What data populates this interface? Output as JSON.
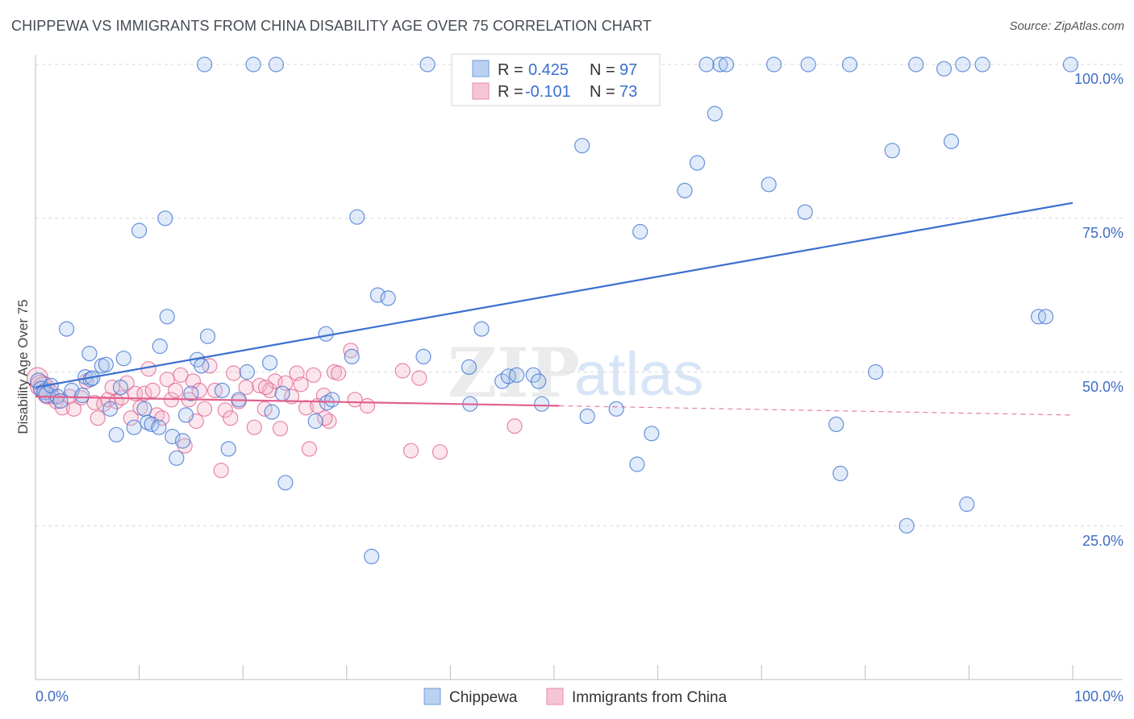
{
  "title": "CHIPPEWA VS IMMIGRANTS FROM CHINA DISABILITY AGE OVER 75 CORRELATION CHART",
  "source": "Source: ZipAtlas.com",
  "watermark": {
    "zip": "ZIP",
    "atlas": "atlas"
  },
  "colors": {
    "blue": "#3a6fd0",
    "blue_fill": "#a9c6ee",
    "pink": "#e0608e",
    "pink_fill": "#f4b7cb",
    "tick": "#3f6cc2",
    "grid": "#d8d8d8"
  },
  "legend": {
    "r_label": "R =",
    "n_label": "N =",
    "rows": [
      {
        "r": "0.425",
        "n": "97"
      },
      {
        "r": "-0.101",
        "n": "73"
      }
    ]
  },
  "chart_data": {
    "type": "scatter",
    "title": "CHIPPEWA VS IMMIGRANTS FROM CHINA DISABILITY AGE OVER 75 CORRELATION CHART",
    "xlabel": "",
    "ylabel": "Disability Age Over 75",
    "xlim": [
      0,
      100
    ],
    "ylim": [
      0,
      100
    ],
    "x_tick_labels": [
      "0.0%",
      "100.0%"
    ],
    "y_tick_labels": [
      "25.0%",
      "50.0%",
      "75.0%",
      "100.0%"
    ],
    "y_ticks": [
      25,
      50,
      75,
      100
    ],
    "grid": true,
    "legend_position": "top-center",
    "series": [
      {
        "name": "Chippewa",
        "color": "#3a6fd0",
        "trend": {
          "x": [
            0,
            100
          ],
          "y": [
            47.5,
            77.5
          ],
          "style": "solid"
        },
        "points": [
          [
            0.3,
            48.5
          ],
          [
            0.6,
            47.2
          ],
          [
            0.9,
            46.8
          ],
          [
            1.1,
            46.3
          ],
          [
            1.5,
            47.8
          ],
          [
            2.1,
            46.0
          ],
          [
            2.4,
            45.3
          ],
          [
            3.0,
            57.0
          ],
          [
            3.5,
            47.0
          ],
          [
            4.5,
            46.2
          ],
          [
            4.8,
            49.2
          ],
          [
            5.3,
            48.8
          ],
          [
            5.5,
            49.0
          ],
          [
            5.2,
            53.0
          ],
          [
            6.4,
            51.0
          ],
          [
            6.8,
            51.2
          ],
          [
            7.2,
            44.0
          ],
          [
            7.8,
            39.8
          ],
          [
            8.2,
            47.5
          ],
          [
            8.5,
            52.2
          ],
          [
            9.5,
            41.0
          ],
          [
            10.0,
            73.0
          ],
          [
            10.5,
            44.0
          ],
          [
            10.8,
            41.8
          ],
          [
            11.2,
            41.5
          ],
          [
            11.9,
            41.0
          ],
          [
            12.0,
            54.2
          ],
          [
            12.5,
            75.0
          ],
          [
            12.7,
            59.0
          ],
          [
            13.2,
            39.5
          ],
          [
            13.6,
            36.0
          ],
          [
            14.2,
            38.8
          ],
          [
            14.5,
            43.0
          ],
          [
            15.0,
            46.5
          ],
          [
            15.6,
            52.0
          ],
          [
            16.0,
            51.0
          ],
          [
            16.6,
            55.8
          ],
          [
            16.3,
            100
          ],
          [
            18.0,
            47.0
          ],
          [
            18.6,
            37.5
          ],
          [
            19.6,
            45.5
          ],
          [
            20.4,
            50.0
          ],
          [
            21.0,
            100
          ],
          [
            22.6,
            51.5
          ],
          [
            22.8,
            43.5
          ],
          [
            23.2,
            100
          ],
          [
            23.8,
            46.5
          ],
          [
            24.1,
            32.0
          ],
          [
            27.0,
            42.0
          ],
          [
            28.0,
            56.2
          ],
          [
            28.1,
            45.0
          ],
          [
            28.6,
            45.5
          ],
          [
            30.5,
            52.5
          ],
          [
            31.0,
            75.2
          ],
          [
            32.4,
            20.0
          ],
          [
            33.0,
            62.5
          ],
          [
            34.0,
            62.0
          ],
          [
            37.4,
            52.5
          ],
          [
            41.8,
            50.8
          ],
          [
            41.9,
            44.8
          ],
          [
            43.0,
            57.0
          ],
          [
            45.0,
            48.5
          ],
          [
            45.6,
            49.3
          ],
          [
            46.4,
            49.5
          ],
          [
            48.0,
            49.5
          ],
          [
            48.5,
            48.5
          ],
          [
            48.8,
            44.8
          ],
          [
            52.7,
            86.8
          ],
          [
            53.2,
            42.8
          ],
          [
            56.0,
            44.0
          ],
          [
            58.0,
            35.0
          ],
          [
            58.3,
            72.8
          ],
          [
            59.4,
            40.0
          ],
          [
            62.6,
            79.5
          ],
          [
            63.8,
            84.0
          ],
          [
            65.5,
            92.0
          ],
          [
            66.0,
            100
          ],
          [
            66.6,
            100
          ],
          [
            70.7,
            80.5
          ],
          [
            71.2,
            100
          ],
          [
            74.2,
            76.0
          ],
          [
            74.5,
            100
          ],
          [
            77.2,
            41.5
          ],
          [
            77.6,
            33.5
          ],
          [
            78.5,
            100
          ],
          [
            81.0,
            50.0
          ],
          [
            82.6,
            86.0
          ],
          [
            84.0,
            25.0
          ],
          [
            84.9,
            100
          ],
          [
            87.6,
            99.3
          ],
          [
            88.3,
            87.5
          ],
          [
            89.4,
            100
          ],
          [
            89.8,
            28.5
          ],
          [
            91.3,
            100
          ],
          [
            96.7,
            59.0
          ],
          [
            97.4,
            59.0
          ],
          [
            99.8,
            100
          ],
          [
            37.8,
            100
          ],
          [
            64.7,
            100
          ]
        ]
      },
      {
        "name": "Immigrants from China",
        "color": "#e0608e",
        "trend": {
          "x": [
            0,
            50.5
          ],
          "y": [
            46.0,
            44.5
          ],
          "style": "solid",
          "dashed_to": {
            "x": 100,
            "y": 43.0
          }
        },
        "points": [
          [
            0.2,
            49.0
          ],
          [
            0.5,
            47.8
          ],
          [
            0.8,
            47.5
          ],
          [
            1.2,
            46.5
          ],
          [
            1.6,
            46.0
          ],
          [
            2.0,
            45.2
          ],
          [
            2.6,
            44.2
          ],
          [
            3.3,
            46.0
          ],
          [
            3.7,
            44.0
          ],
          [
            4.4,
            45.8
          ],
          [
            4.9,
            48.5
          ],
          [
            5.7,
            45.0
          ],
          [
            6.0,
            42.5
          ],
          [
            6.6,
            44.8
          ],
          [
            7.0,
            45.5
          ],
          [
            7.4,
            47.5
          ],
          [
            7.8,
            45.2
          ],
          [
            8.3,
            45.8
          ],
          [
            8.8,
            48.2
          ],
          [
            9.2,
            42.5
          ],
          [
            9.6,
            46.5
          ],
          [
            10.1,
            44.2
          ],
          [
            10.5,
            46.5
          ],
          [
            10.9,
            50.5
          ],
          [
            11.3,
            47.0
          ],
          [
            11.7,
            43.0
          ],
          [
            12.2,
            42.5
          ],
          [
            12.7,
            48.8
          ],
          [
            13.1,
            45.5
          ],
          [
            13.5,
            47.0
          ],
          [
            14.0,
            49.5
          ],
          [
            14.4,
            38.0
          ],
          [
            14.8,
            45.5
          ],
          [
            15.2,
            48.5
          ],
          [
            15.5,
            42.0
          ],
          [
            15.8,
            47.0
          ],
          [
            16.3,
            44.0
          ],
          [
            16.8,
            51.0
          ],
          [
            17.3,
            47.0
          ],
          [
            17.9,
            34.0
          ],
          [
            18.3,
            43.8
          ],
          [
            18.8,
            42.5
          ],
          [
            19.1,
            49.8
          ],
          [
            19.6,
            45.2
          ],
          [
            20.3,
            47.5
          ],
          [
            21.1,
            41.0
          ],
          [
            21.6,
            47.8
          ],
          [
            22.1,
            44.0
          ],
          [
            22.6,
            47.0
          ],
          [
            23.1,
            48.5
          ],
          [
            23.6,
            40.8
          ],
          [
            24.1,
            48.2
          ],
          [
            24.7,
            46.0
          ],
          [
            25.2,
            49.8
          ],
          [
            25.6,
            48.0
          ],
          [
            26.1,
            44.2
          ],
          [
            26.4,
            37.5
          ],
          [
            26.8,
            49.5
          ],
          [
            27.2,
            44.5
          ],
          [
            27.8,
            46.2
          ],
          [
            28.3,
            42.0
          ],
          [
            28.8,
            50.0
          ],
          [
            29.2,
            49.8
          ],
          [
            30.4,
            53.5
          ],
          [
            30.8,
            45.5
          ],
          [
            32.0,
            44.5
          ],
          [
            35.4,
            50.2
          ],
          [
            36.2,
            37.2
          ],
          [
            37.0,
            49.0
          ],
          [
            39.0,
            37.0
          ],
          [
            46.2,
            41.2
          ],
          [
            27.9,
            42.5
          ],
          [
            22.2,
            47.5
          ]
        ]
      }
    ]
  },
  "bottom_legend": [
    "Chippewa",
    "Immigrants from China"
  ]
}
